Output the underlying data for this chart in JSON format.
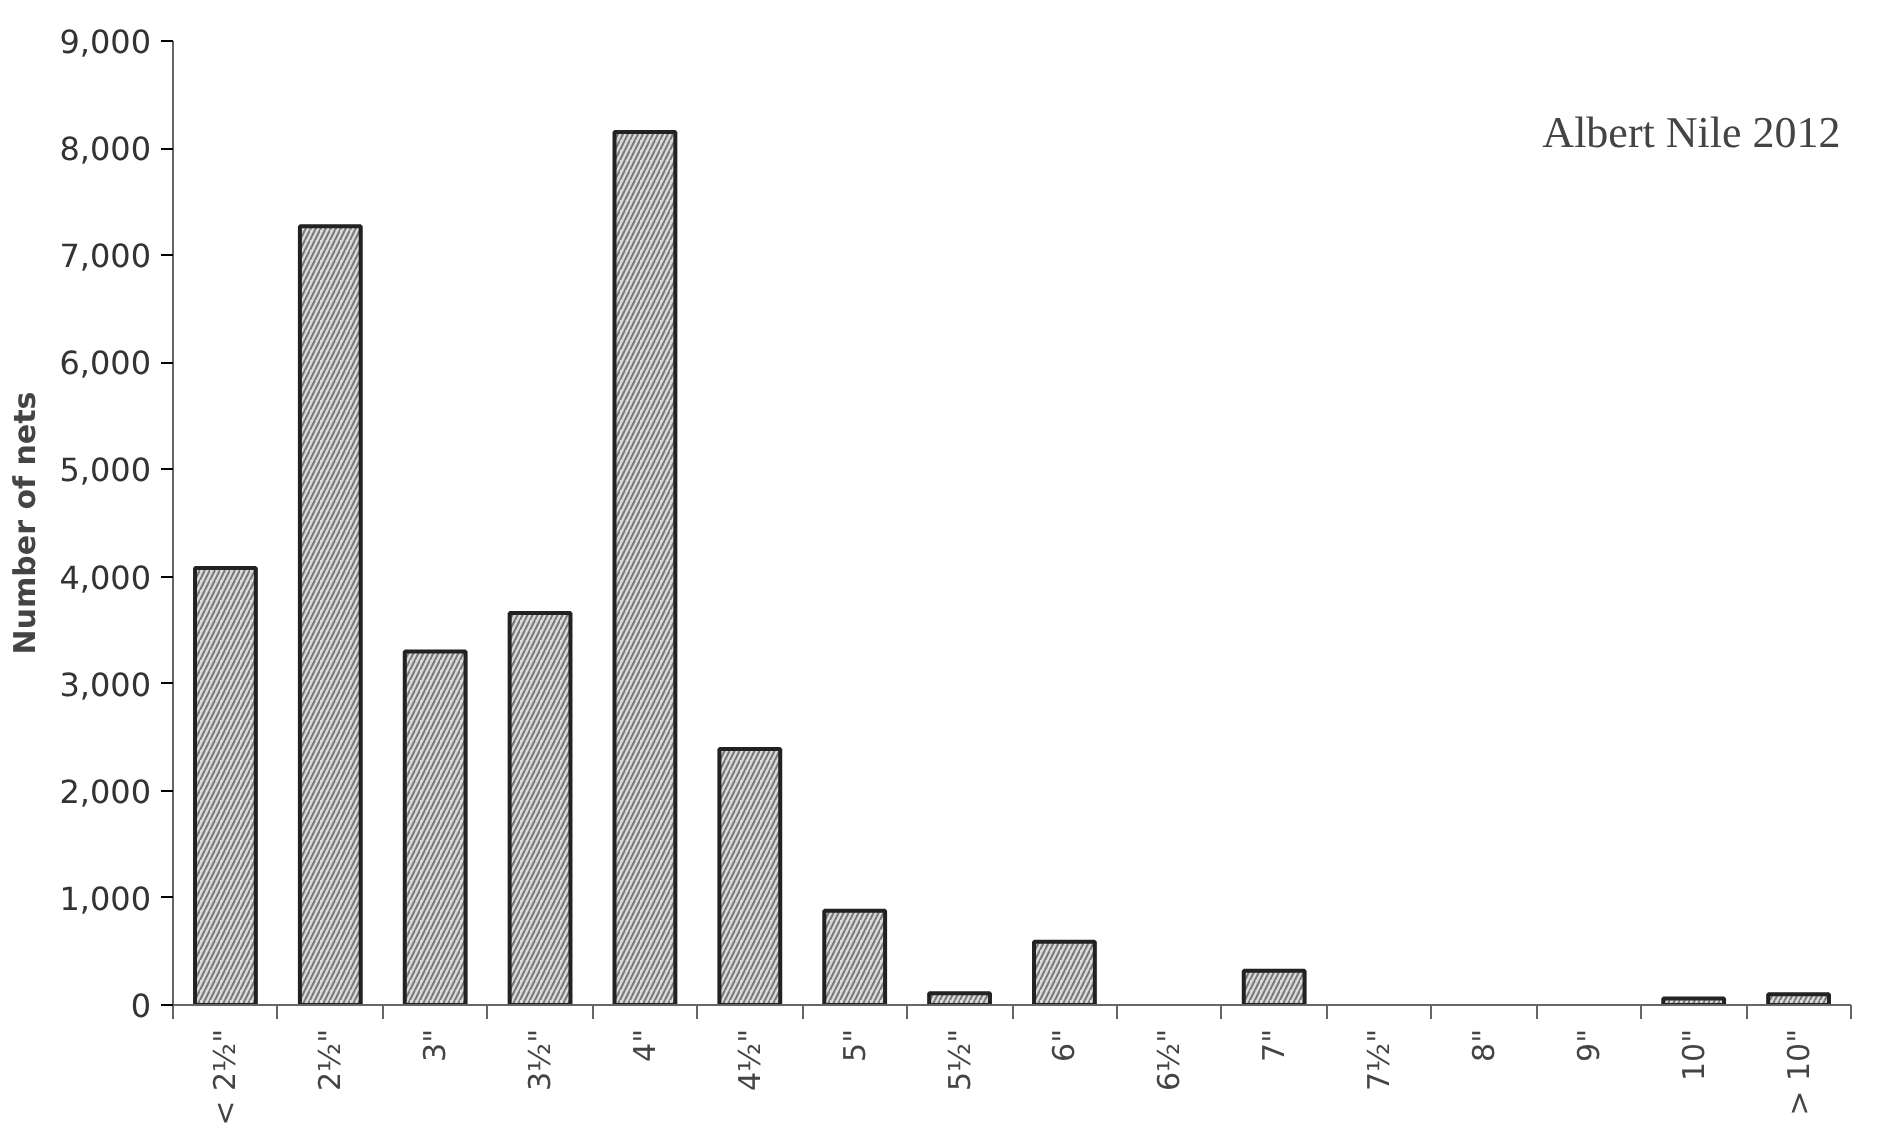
{
  "chart_data": {
    "type": "bar",
    "ylabel": "Number of nets",
    "annotations": [
      "Albert Nile 2012"
    ],
    "categories": [
      "< 2½\"",
      "2½\"",
      "3\"",
      "3½\"",
      "4\"",
      "4½\"",
      "5\"",
      "5½\"",
      "6\"",
      "6½\"",
      "7\"",
      "7½\"",
      "8\"",
      "9\"",
      "10\"",
      "> 10\""
    ],
    "values": [
      4080,
      7270,
      3300,
      3660,
      8150,
      2390,
      880,
      110,
      590,
      0,
      320,
      0,
      0,
      0,
      60,
      100
    ],
    "color": "#d9d9d9",
    "ylim": [
      0,
      9000
    ],
    "yticks": [
      {
        "value": 0,
        "label": "0"
      },
      {
        "value": 1000,
        "label": "1,000"
      },
      {
        "value": 2000,
        "label": "2,000"
      },
      {
        "value": 3000,
        "label": "3,000"
      },
      {
        "value": 4000,
        "label": "4,000"
      },
      {
        "value": 5000,
        "label": "5,000"
      },
      {
        "value": 6000,
        "label": "6,000"
      },
      {
        "value": 7000,
        "label": "7,000"
      },
      {
        "value": 8000,
        "label": "8,000"
      },
      {
        "value": 9000,
        "label": "9,000"
      }
    ],
    "grid": false
  }
}
